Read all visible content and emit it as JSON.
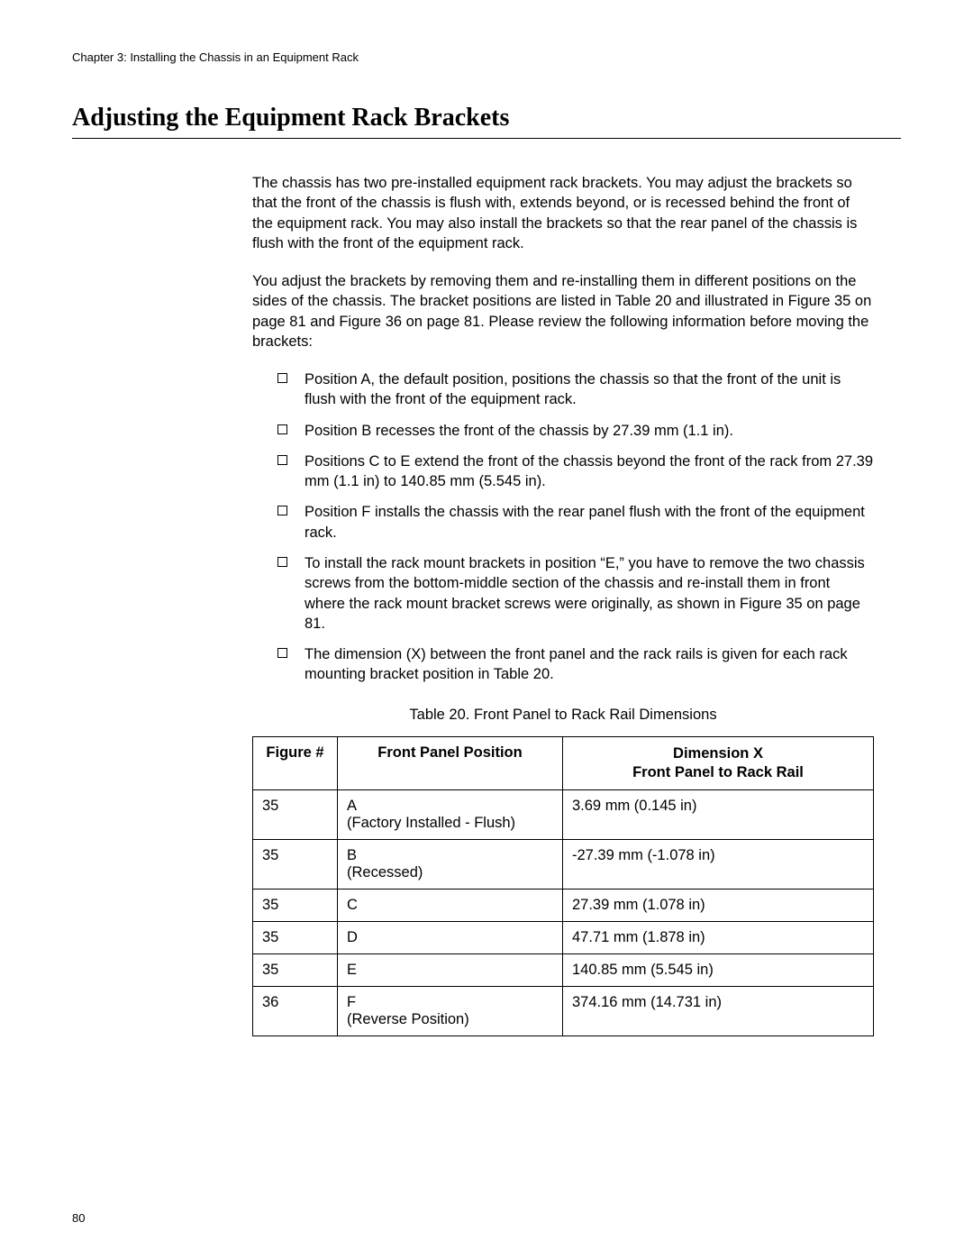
{
  "runningHeader": "Chapter 3: Installing the Chassis in an Equipment Rack",
  "sectionTitle": "Adjusting the Equipment Rack Brackets",
  "para1": "The chassis has two pre-installed equipment rack brackets. You may adjust the brackets so that the front of the chassis is flush with, extends beyond, or is recessed behind the front of the equipment rack. You may also install the brackets so that the rear panel of the chassis is flush with the front of the equipment rack.",
  "para2": "You adjust the brackets by removing them and re-installing them in different positions on the sides of the chassis. The bracket positions are listed in Table 20 and illustrated in Figure 35 on page 81 and Figure 36 on page 81. Please review the following information before moving the brackets:",
  "bullets": [
    "Position A, the default position, positions the chassis so that the front of the unit is flush with the front of the equipment rack.",
    "Position B recesses the front of the chassis by 27.39 mm (1.1 in).",
    "Positions C to E extend the front of the chassis beyond the front of the rack from 27.39 mm (1.1 in) to 140.85 mm (5.545 in).",
    "Position F installs the chassis with the rear panel flush with the front of the equipment rack.",
    "To install the rack mount brackets in position “E,” you have to remove the two chassis screws from the bottom-middle section of the chassis and re-install them in front where the rack mount bracket screws were originally, as shown in Figure 35 on page 81.",
    "The dimension (X) between the front panel and the rack rails is given for each rack mounting bracket position in Table 20."
  ],
  "tableCaption": "Table 20. Front Panel to Rack Rail Dimensions",
  "table": {
    "headers": {
      "col1": "Figure #",
      "col2": "Front Panel Position",
      "col3line1": "Dimension X",
      "col3line2": "Front Panel to Rack Rail"
    },
    "rows": [
      {
        "fig": "35",
        "posLine1": "A",
        "posLine2": "(Factory Installed - Flush)",
        "dim": "3.69 mm (0.145 in)"
      },
      {
        "fig": "35",
        "posLine1": "B",
        "posLine2": "(Recessed)",
        "dim": "-27.39 mm (-1.078 in)"
      },
      {
        "fig": "35",
        "posLine1": "C",
        "posLine2": "",
        "dim": "27.39 mm (1.078 in)"
      },
      {
        "fig": "35",
        "posLine1": "D",
        "posLine2": "",
        "dim": "47.71 mm (1.878 in)"
      },
      {
        "fig": "35",
        "posLine1": "E",
        "posLine2": "",
        "dim": "140.85 mm (5.545 in)"
      },
      {
        "fig": "36",
        "posLine1": "F",
        "posLine2": "(Reverse Position)",
        "dim": "374.16 mm (14.731 in)"
      }
    ]
  },
  "pageNumber": "80"
}
